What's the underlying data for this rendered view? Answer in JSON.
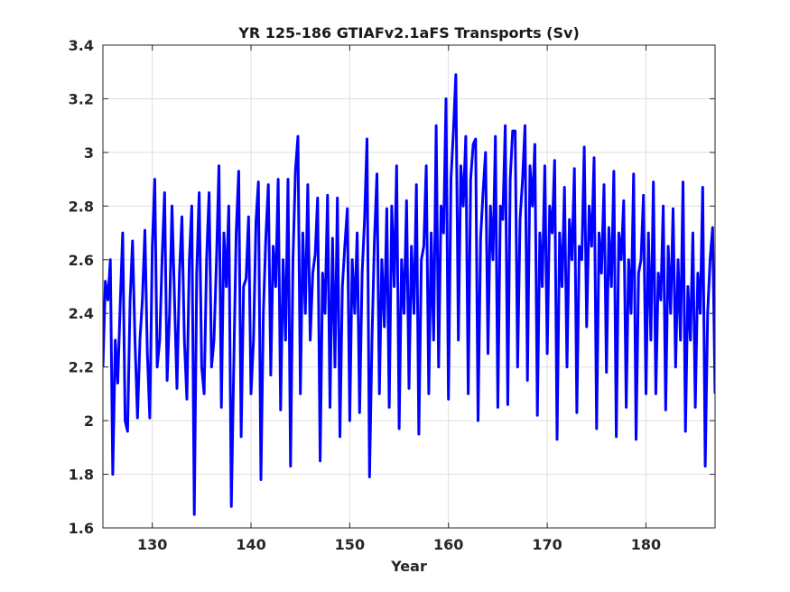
{
  "chart_data": {
    "type": "line",
    "title": "YR 125-186 GTIAFv2.1aFS Transports (Sv)",
    "xlabel": "Year",
    "ylabel": "",
    "xlim": [
      125,
      187
    ],
    "ylim": [
      1.6,
      3.4
    ],
    "xticks": [
      130,
      140,
      150,
      160,
      170,
      180
    ],
    "yticks": [
      1.6,
      1.8,
      2,
      2.2,
      2.4,
      2.6,
      2.8,
      3,
      3.2,
      3.4
    ],
    "xtick_labels": [
      "130",
      "140",
      "150",
      "160",
      "170",
      "180"
    ],
    "ytick_labels": [
      "1.6",
      "1.8",
      "2",
      "2.2",
      "2.4",
      "2.6",
      "2.8",
      "3",
      "3.2",
      "3.4"
    ],
    "grid": true,
    "series": [
      {
        "color": "#0000ff",
        "x": [
          125.0,
          125.25,
          125.5,
          125.75,
          126.0,
          126.25,
          126.5,
          126.75,
          127.0,
          127.25,
          127.5,
          127.75,
          128.0,
          128.25,
          128.5,
          128.75,
          129.0,
          129.25,
          129.5,
          129.75,
          130.0,
          130.25,
          130.5,
          130.75,
          131.0,
          131.25,
          131.5,
          131.75,
          132.0,
          132.25,
          132.5,
          132.75,
          133.0,
          133.25,
          133.5,
          133.75,
          134.0,
          134.25,
          134.5,
          134.75,
          135.0,
          135.25,
          135.5,
          135.75,
          136.0,
          136.25,
          136.5,
          136.75,
          137.0,
          137.25,
          137.5,
          137.75,
          138.0,
          138.25,
          138.5,
          138.75,
          139.0,
          139.25,
          139.5,
          139.75,
          140.0,
          140.25,
          140.5,
          140.75,
          141.0,
          141.25,
          141.5,
          141.75,
          142.0,
          142.25,
          142.5,
          142.75,
          143.0,
          143.25,
          143.5,
          143.75,
          144.0,
          144.25,
          144.5,
          144.75,
          145.0,
          145.25,
          145.5,
          145.75,
          146.0,
          146.25,
          146.5,
          146.75,
          147.0,
          147.25,
          147.5,
          147.75,
          148.0,
          148.25,
          148.5,
          148.75,
          149.0,
          149.25,
          149.5,
          149.75,
          150.0,
          150.25,
          150.5,
          150.75,
          151.0,
          151.25,
          151.5,
          151.75,
          152.0,
          152.25,
          152.5,
          152.75,
          153.0,
          153.25,
          153.5,
          153.75,
          154.0,
          154.25,
          154.5,
          154.75,
          155.0,
          155.25,
          155.5,
          155.75,
          156.0,
          156.25,
          156.5,
          156.75,
          157.0,
          157.25,
          157.5,
          157.75,
          158.0,
          158.25,
          158.5,
          158.75,
          159.0,
          159.25,
          159.5,
          159.75,
          160.0,
          160.25,
          160.5,
          160.75,
          161.0,
          161.25,
          161.5,
          161.75,
          162.0,
          162.25,
          162.5,
          162.75,
          163.0,
          163.25,
          163.5,
          163.75,
          164.0,
          164.25,
          164.5,
          164.75,
          165.0,
          165.25,
          165.5,
          165.75,
          166.0,
          166.25,
          166.5,
          166.75,
          167.0,
          167.25,
          167.5,
          167.75,
          168.0,
          168.25,
          168.5,
          168.75,
          169.0,
          169.25,
          169.5,
          169.75,
          170.0,
          170.25,
          170.5,
          170.75,
          171.0,
          171.25,
          171.5,
          171.75,
          172.0,
          172.25,
          172.5,
          172.75,
          173.0,
          173.25,
          173.5,
          173.75,
          174.0,
          174.25,
          174.5,
          174.75,
          175.0,
          175.25,
          175.5,
          175.75,
          176.0,
          176.25,
          176.5,
          176.75,
          177.0,
          177.25,
          177.5,
          177.75,
          178.0,
          178.25,
          178.5,
          178.75,
          179.0,
          179.25,
          179.5,
          179.75,
          180.0,
          180.25,
          180.5,
          180.75,
          181.0,
          181.25,
          181.5,
          181.75,
          182.0,
          182.25,
          182.5,
          182.75,
          183.0,
          183.25,
          183.5,
          183.75,
          184.0,
          184.25,
          184.5,
          184.75,
          185.0,
          185.25,
          185.5,
          185.75,
          186.0,
          186.25,
          186.5,
          186.75,
          187.0
        ],
        "y": [
          2.2,
          2.52,
          2.45,
          2.6,
          1.8,
          2.3,
          2.14,
          2.43,
          2.7,
          2.0,
          1.96,
          2.45,
          2.67,
          2.3,
          2.01,
          2.3,
          2.45,
          2.71,
          2.25,
          2.01,
          2.65,
          2.9,
          2.2,
          2.3,
          2.61,
          2.85,
          2.15,
          2.4,
          2.8,
          2.45,
          2.12,
          2.55,
          2.76,
          2.3,
          2.08,
          2.6,
          2.8,
          1.65,
          2.55,
          2.85,
          2.2,
          2.1,
          2.6,
          2.85,
          2.2,
          2.3,
          2.6,
          2.95,
          2.05,
          2.7,
          2.5,
          2.8,
          1.68,
          2.2,
          2.7,
          2.93,
          1.94,
          2.5,
          2.53,
          2.76,
          2.1,
          2.3,
          2.74,
          2.89,
          1.78,
          2.4,
          2.68,
          2.88,
          2.17,
          2.65,
          2.5,
          2.9,
          2.04,
          2.6,
          2.3,
          2.9,
          1.83,
          2.6,
          2.93,
          3.06,
          2.1,
          2.7,
          2.4,
          2.88,
          2.3,
          2.55,
          2.62,
          2.83,
          1.85,
          2.55,
          2.4,
          2.84,
          2.05,
          2.68,
          2.2,
          2.83,
          1.94,
          2.5,
          2.65,
          2.79,
          2.0,
          2.6,
          2.4,
          2.7,
          2.03,
          2.55,
          2.75,
          3.05,
          1.79,
          2.3,
          2.67,
          2.92,
          2.1,
          2.6,
          2.35,
          2.79,
          2.05,
          2.8,
          2.5,
          2.95,
          1.97,
          2.6,
          2.4,
          2.82,
          2.12,
          2.65,
          2.4,
          2.88,
          1.95,
          2.6,
          2.65,
          2.95,
          2.1,
          2.7,
          2.3,
          3.1,
          2.2,
          2.8,
          2.7,
          3.2,
          2.08,
          2.9,
          3.08,
          3.29,
          2.3,
          2.95,
          2.8,
          3.06,
          2.1,
          2.9,
          3.03,
          3.05,
          2.0,
          2.68,
          2.85,
          3.0,
          2.25,
          2.8,
          2.6,
          3.06,
          2.05,
          2.8,
          2.75,
          3.1,
          2.06,
          2.9,
          3.08,
          3.08,
          2.2,
          2.75,
          2.9,
          3.1,
          2.15,
          2.95,
          2.8,
          3.03,
          2.02,
          2.7,
          2.5,
          2.95,
          2.25,
          2.8,
          2.7,
          2.97,
          1.93,
          2.7,
          2.5,
          2.87,
          2.2,
          2.75,
          2.6,
          2.94,
          2.03,
          2.65,
          2.6,
          3.02,
          2.35,
          2.8,
          2.65,
          2.98,
          1.97,
          2.7,
          2.55,
          2.88,
          2.18,
          2.72,
          2.5,
          2.93,
          1.94,
          2.7,
          2.6,
          2.82,
          2.05,
          2.6,
          2.4,
          2.92,
          1.93,
          2.55,
          2.6,
          2.84,
          2.1,
          2.7,
          2.3,
          2.89,
          2.1,
          2.55,
          2.45,
          2.8,
          2.04,
          2.65,
          2.4,
          2.79,
          2.2,
          2.6,
          2.3,
          2.89,
          1.96,
          2.5,
          2.3,
          2.7,
          2.05,
          2.55,
          2.4,
          2.87,
          1.83,
          2.4,
          2.6,
          2.72,
          2.1
        ]
      }
    ]
  }
}
